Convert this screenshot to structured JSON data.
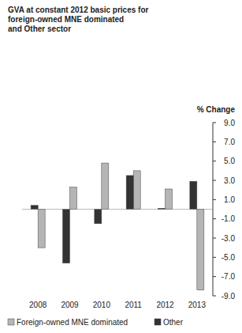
{
  "chart_data": {
    "type": "bar",
    "title": "GVA at constant 2012 basic prices for\nforeign-owned MNE dominated\nand Other sector",
    "y_label": "% Change",
    "categories": [
      "2008",
      "2009",
      "2010",
      "2011",
      "2012",
      "2013"
    ],
    "series": [
      {
        "name": "Foreign-owned MNE dominated",
        "color": "#b5b5b5",
        "values": [
          -4.0,
          2.3,
          4.8,
          4.0,
          2.1,
          -8.4
        ]
      },
      {
        "name": "Other",
        "color": "#333333",
        "values": [
          0.4,
          -5.6,
          -1.5,
          3.5,
          0.1,
          2.9
        ]
      }
    ],
    "ylim": [
      -9,
      9
    ],
    "yticks": [
      {
        "value": 9,
        "label": "9.0"
      },
      {
        "value": 7,
        "label": "7.0"
      },
      {
        "value": 5,
        "label": "5.0"
      },
      {
        "value": 3,
        "label": "3.0"
      },
      {
        "value": 1,
        "label": "1.0"
      },
      {
        "value": -1,
        "label": "-1.0"
      },
      {
        "value": -3,
        "label": "-3.0"
      },
      {
        "value": -5,
        "label": "-5.0"
      },
      {
        "value": -7,
        "label": "-7.0"
      },
      {
        "value": -9,
        "label": "-9.0"
      }
    ],
    "grid": false,
    "legend": "bottom"
  }
}
